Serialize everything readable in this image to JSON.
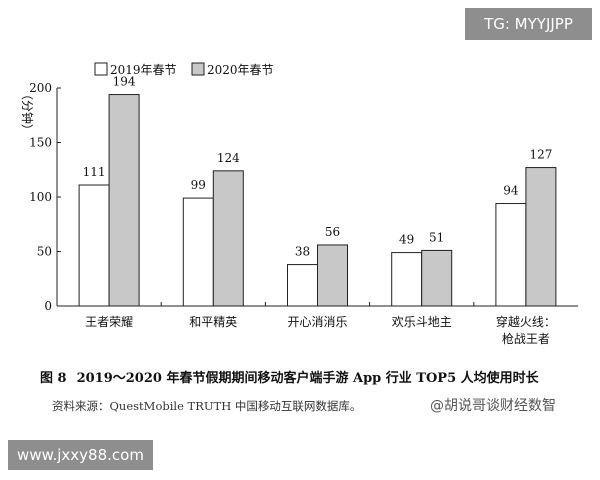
{
  "watermarks": {
    "top": "TG: MYYJJPP",
    "bottom": "www.jxxy88.com",
    "weibo": "@胡说哥谈财经数智"
  },
  "figure": {
    "number": "图 8",
    "caption": "2019～2020 年春节假期期间移动客户端手游 App 行业 TOP5 人均使用时长",
    "source": "资料来源：QuestMobile TRUTH 中国移动互联网数据库。"
  },
  "colors": {
    "series_2019": "#ffffff",
    "series_2020": "#c8c8c8",
    "stroke": "#222222"
  },
  "chart_data": {
    "type": "bar",
    "ylabel": "（分钟）",
    "ylim": [
      0,
      200
    ],
    "yticks": [
      0,
      50,
      100,
      150,
      200
    ],
    "categories": [
      "王者荣耀",
      "和平精英",
      "开心消消乐",
      "欢乐斗地主",
      "穿越火线：枪战王者"
    ],
    "category_lines": [
      [
        "王者荣耀"
      ],
      [
        "和平精英"
      ],
      [
        "开心消消乐"
      ],
      [
        "欢乐斗地主"
      ],
      [
        "穿越火线：",
        "枪战王者"
      ]
    ],
    "series": [
      {
        "name": "2019年春节",
        "values": [
          111,
          99,
          38,
          49,
          94
        ]
      },
      {
        "name": "2020年春节",
        "values": [
          194,
          124,
          56,
          51,
          127
        ]
      }
    ],
    "legend_position": "top-left",
    "grid": false
  }
}
